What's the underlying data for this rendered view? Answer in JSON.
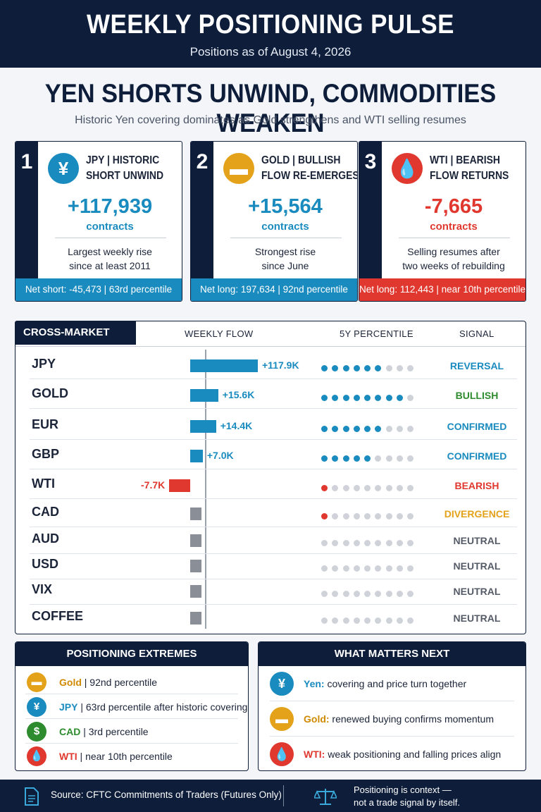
{
  "header": {
    "title": "WEEKLY POSITIONING PULSE",
    "date": "Positions as of August 4, 2026"
  },
  "headline": "YEN SHORTS UNWIND, COMMODITIES WEAKEN",
  "subhead": "Historic Yen covering dominates as Gold strengthens and WTI selling resumes",
  "cards": [
    {
      "number": "1",
      "icon": "yen-icon",
      "icon_glyph": "¥",
      "title_line1": "JPY | HISTORIC",
      "title_line2": "SHORT UNWIND",
      "value": "+117,939",
      "unit": "contracts",
      "desc_line1": "Largest weekly rise",
      "desc_line2": "since at least 2011",
      "footer": "Net short: -45,473 | 63rd percentile",
      "accent": "#1a8bbf"
    },
    {
      "number": "2",
      "icon": "gold-bar-icon",
      "icon_glyph": "▬",
      "title_line1": "GOLD | BULLISH",
      "title_line2": "FLOW RE-EMERGES",
      "value": "+15,564",
      "unit": "contracts",
      "desc_line1": "Strongest rise",
      "desc_line2": "since June",
      "footer": "Net long: 197,634 | 92nd percentile",
      "accent": "#1a8bbf"
    },
    {
      "number": "3",
      "icon": "oil-drop-icon",
      "icon_glyph": "💧",
      "title_line1": "WTI | BEARISH",
      "title_line2": "FLOW RETURNS",
      "value": "-7,665",
      "unit": "contracts",
      "desc_line1": "Selling resumes after",
      "desc_line2": "two weeks of rebuilding",
      "footer": "Net long: 112,443 | near 10th percentile",
      "accent": "#e0382f"
    }
  ],
  "pulse": {
    "tab": "CROSS-MARKET PULSE",
    "col_flow": "WEEKLY FLOW",
    "col_pct": "5Y PERCENTILE",
    "col_signal": "SIGNAL"
  },
  "chart_data": {
    "type": "bar",
    "title": "CROSS-MARKET PULSE",
    "xlabel": "WEEKLY FLOW",
    "categories": [
      "JPY",
      "GOLD",
      "EUR",
      "GBP",
      "WTI",
      "CAD",
      "AUD",
      "USD",
      "VIX",
      "COFFEE"
    ],
    "values": [
      117.9,
      15.6,
      14.4,
      7.0,
      -7.7,
      3.2,
      2.8,
      2.3,
      2.3,
      2.3
    ],
    "value_labels": [
      "+117.9K",
      "+15.6K",
      "+14.4K",
      "+7.0K",
      "-7.7K",
      "",
      "",
      "",
      "",
      ""
    ],
    "units": "K contracts",
    "percentile_dots_filled": [
      6,
      8,
      6,
      5,
      1,
      1,
      0,
      0,
      0,
      0
    ],
    "percentile_dots_total": 9,
    "signals": [
      "REVERSAL",
      "BULLISH",
      "CONFIRMED",
      "CONFIRMED",
      "BEARISH",
      "DIVERGENCE",
      "NEUTRAL",
      "NEUTRAL",
      "NEUTRAL",
      "NEUTRAL"
    ],
    "signal_colors": [
      "#1a8bbf",
      "#2e8b2e",
      "#1a8bbf",
      "#1a8bbf",
      "#e0382f",
      "#e3a21a",
      "#555b66",
      "#555b66",
      "#555b66",
      "#555b66"
    ],
    "bar_colors": [
      "#1a8bbf",
      "#1a8bbf",
      "#1a8bbf",
      "#1a8bbf",
      "#e0382f",
      "#8a8f97",
      "#8a8f97",
      "#8a8f97",
      "#8a8f97",
      "#8a8f97"
    ],
    "dot_colors": [
      "#1a8bbf",
      "#1a8bbf",
      "#1a8bbf",
      "#1a8bbf",
      "#e0382f",
      "#e0382f",
      "#cfd3d9",
      "#cfd3d9",
      "#cfd3d9",
      "#cfd3d9"
    ]
  },
  "extremes": {
    "title": "POSITIONING EXTREMES",
    "items": [
      {
        "label": "Gold",
        "rest": " | 92nd percentile",
        "icon": "gold-bar-icon",
        "glyph": "▬",
        "color": "#e3a21a",
        "label_color": "#d08a00"
      },
      {
        "label": "JPY",
        "rest": " | 63rd percentile after historic covering",
        "icon": "yen-icon",
        "glyph": "¥",
        "color": "#1a8bbf",
        "label_color": "#1a8bbf"
      },
      {
        "label": "CAD",
        "rest": " | 3rd percentile",
        "icon": "dollar-icon",
        "glyph": "$",
        "color": "#2e8b2e",
        "label_color": "#2e8b2e"
      },
      {
        "label": "WTI",
        "rest": " | near 10th percentile",
        "icon": "oil-drop-icon",
        "glyph": "💧",
        "color": "#e0382f",
        "label_color": "#e0382f"
      }
    ]
  },
  "next": {
    "title": "WHAT MATTERS NEXT",
    "items": [
      {
        "label": "Yen:",
        "rest": " covering and price turn together",
        "icon": "yen-icon",
        "glyph": "¥",
        "color": "#1a8bbf",
        "label_color": "#1a8bbf"
      },
      {
        "label": "Gold:",
        "rest": " renewed buying confirms momentum",
        "icon": "gold-bar-icon",
        "glyph": "▬",
        "color": "#e3a21a",
        "label_color": "#d08a00"
      },
      {
        "label": "WTI:",
        "rest": " weak positioning and falling prices align",
        "icon": "oil-drop-icon",
        "glyph": "💧",
        "color": "#e0382f",
        "label_color": "#e0382f"
      }
    ]
  },
  "footer": {
    "source": "Source: CFTC Commitments of Traders (Futures Only)",
    "note_line1": "Positioning is context —",
    "note_line2": "not a trade signal by itself."
  }
}
